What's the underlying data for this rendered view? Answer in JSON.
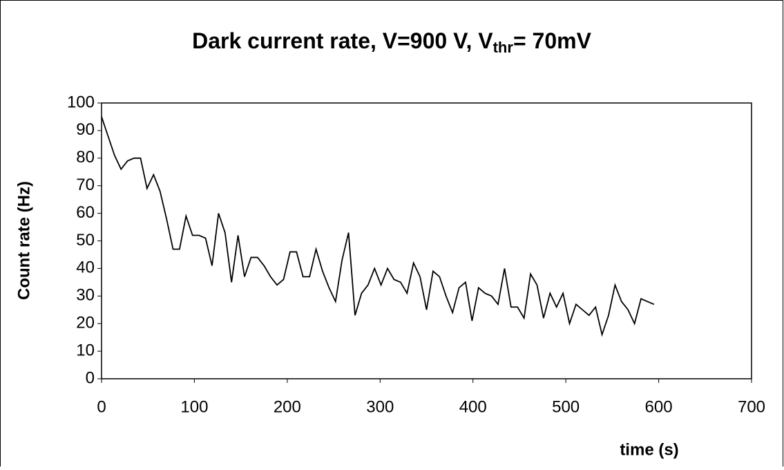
{
  "chart_data": {
    "type": "line",
    "title": "Dark current rate, V=900 V, V",
    "title_sub": "thr",
    "title_end": "= 70mV",
    "x_label": "time (s)",
    "y_label": "Count rate (Hz)",
    "x": [
      0,
      7,
      14,
      21,
      28,
      35,
      42,
      49,
      56,
      63,
      70,
      77,
      84,
      91,
      98,
      105,
      112,
      119,
      126,
      133,
      140,
      147,
      154,
      161,
      168,
      175,
      182,
      189,
      196,
      203,
      210,
      217,
      224,
      231,
      238,
      245,
      252,
      259,
      266,
      273,
      280,
      287,
      294,
      301,
      308,
      315,
      322,
      329,
      336,
      343,
      350,
      357,
      364,
      371,
      378,
      385,
      392,
      399,
      406,
      413,
      420,
      427,
      434,
      441,
      448,
      455,
      462,
      469,
      476,
      483,
      490,
      497,
      504,
      511,
      518,
      525,
      532,
      539,
      546,
      553,
      560,
      567,
      574,
      581,
      588,
      595
    ],
    "series": [
      {
        "color": "#000000",
        "values": [
          95,
          88,
          81,
          76,
          79,
          80,
          80,
          69,
          74,
          68,
          58,
          47,
          47,
          59,
          52,
          52,
          51,
          41,
          60,
          53,
          35,
          52,
          37,
          44,
          44,
          41,
          37,
          34,
          36,
          46,
          46,
          37,
          37,
          47,
          39,
          33,
          28,
          43,
          53,
          23,
          31,
          34,
          40,
          34,
          40,
          36,
          35,
          31,
          42,
          37,
          25,
          39,
          37,
          30,
          24,
          33,
          35,
          21,
          33,
          31,
          30,
          27,
          40,
          26,
          26,
          22,
          38,
          34,
          22,
          31,
          26,
          31,
          20,
          27,
          25,
          23,
          26,
          16,
          23,
          34,
          28,
          25,
          20,
          29,
          28,
          27
        ]
      }
    ],
    "xlim": [
      0,
      700
    ],
    "xticks": [
      0,
      100,
      200,
      300,
      400,
      500,
      600,
      700
    ],
    "ylim": [
      0,
      100
    ],
    "yticks": [
      0,
      10,
      20,
      30,
      40,
      50,
      60,
      70,
      80,
      90,
      100
    ],
    "grid": false
  }
}
